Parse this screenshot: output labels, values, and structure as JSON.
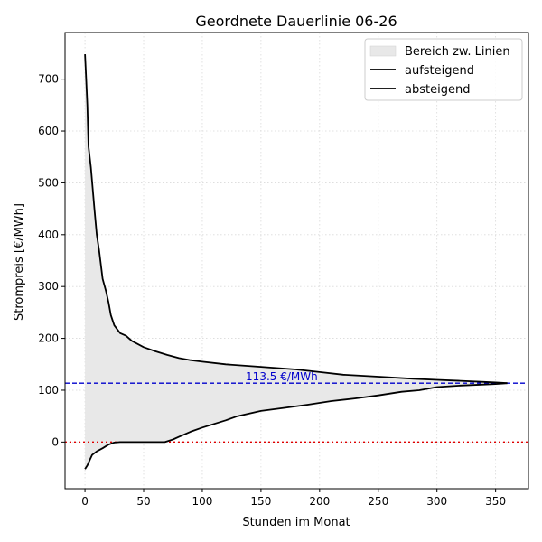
{
  "chart_data": {
    "type": "line",
    "title": "Geordnete Dauerlinie 06-26",
    "xlabel": "Stunden im Monat",
    "ylabel": "Strompreis [€/MWh]",
    "xlim": [
      -17,
      378
    ],
    "ylim": [
      -90,
      790
    ],
    "x_ticks": [
      0,
      50,
      100,
      150,
      200,
      250,
      300,
      350
    ],
    "y_ticks": [
      0,
      100,
      200,
      300,
      400,
      500,
      600,
      700
    ],
    "grid": true,
    "legend_position": "top-right",
    "fill_label": "Bereich zw. Linien",
    "series": [
      {
        "name": "aufsteigend",
        "x": [
          0,
          2,
          4,
          6,
          10,
          15,
          20,
          25,
          30,
          40,
          60,
          68,
          75,
          80,
          90,
          100,
          110,
          120,
          130,
          150,
          170,
          190,
          210,
          230,
          250,
          270,
          285,
          300,
          320,
          340,
          350,
          360
        ],
        "values": [
          -52,
          -45,
          -35,
          -25,
          -18,
          -12,
          -5,
          -1,
          0,
          0,
          0,
          0,
          5,
          10,
          20,
          28,
          35,
          42,
          50,
          60,
          66,
          72,
          79,
          84,
          90,
          97,
          100,
          106,
          109,
          111,
          112,
          113.5
        ]
      },
      {
        "name": "absteigend",
        "x": [
          0,
          1,
          2,
          3,
          5,
          8,
          10,
          12,
          15,
          18,
          20,
          22,
          25,
          30,
          35,
          40,
          50,
          60,
          70,
          80,
          90,
          100,
          120,
          150,
          180,
          200,
          220,
          250,
          280,
          300,
          320,
          340,
          350,
          360
        ],
        "values": [
          748,
          700,
          650,
          570,
          530,
          450,
          400,
          370,
          315,
          290,
          270,
          245,
          225,
          210,
          205,
          195,
          183,
          175,
          168,
          162,
          158,
          155,
          150,
          145,
          140,
          135,
          130,
          126,
          122,
          120,
          118,
          116,
          115,
          113.5
        ]
      }
    ],
    "reference_lines": [
      {
        "y": 113.5,
        "label": "113.5 €/MWh",
        "color": "#0000cc",
        "style": "dashed"
      },
      {
        "y": 0,
        "label": "",
        "color": "#e00000",
        "style": "dotted"
      }
    ],
    "colors": {
      "line": "#000000",
      "fill": "#e8e8e8",
      "grid": "#d9d9d9"
    }
  }
}
